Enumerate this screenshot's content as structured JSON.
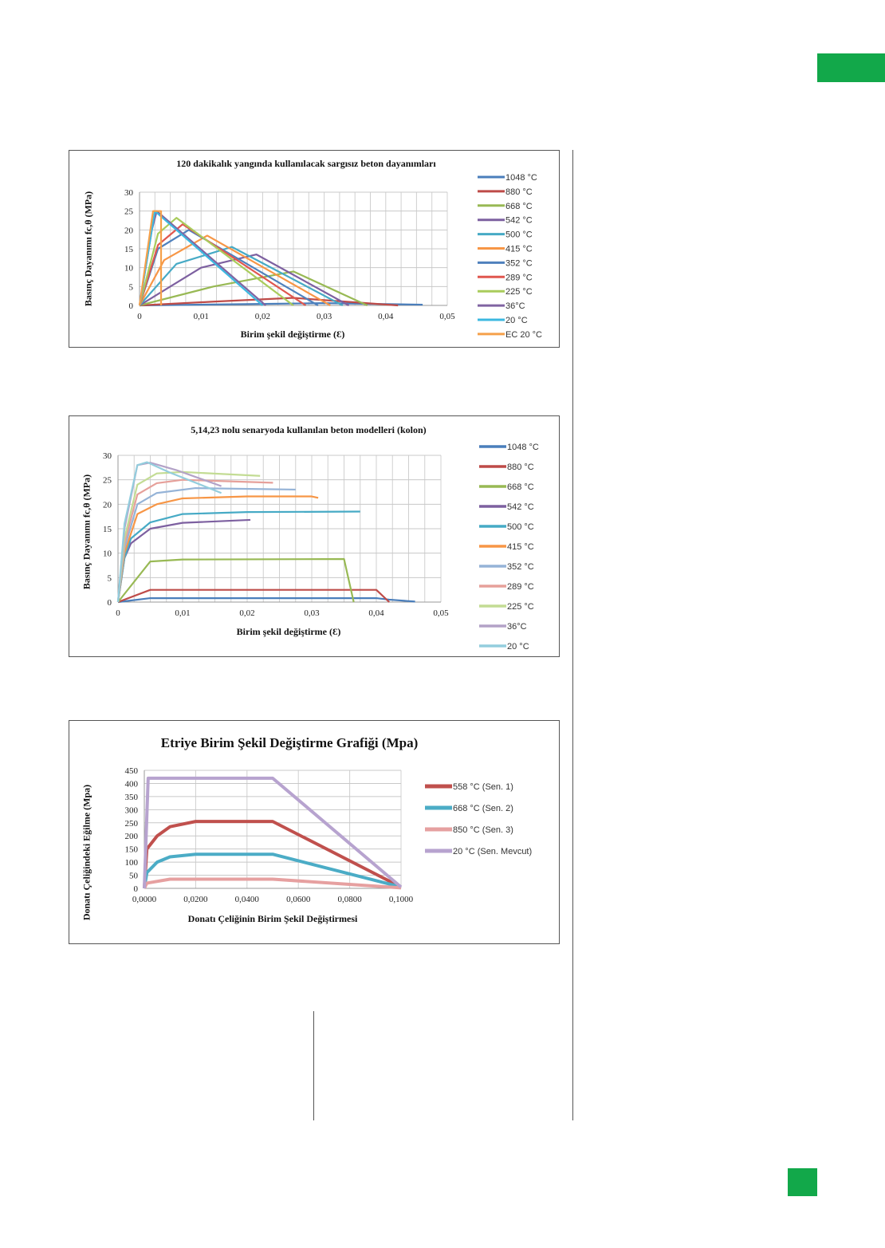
{
  "page": {
    "accent_color": "#12a84a"
  },
  "chart_data": [
    {
      "type": "line",
      "title": "120 dakikalık yangında kullanılacak sargısız beton dayanımları",
      "xlabel": "Birim şekil değiştirme (Ɛ)",
      "ylabel": "Basınç Dayanımı fc,θ (MPa)",
      "xlim": [
        0,
        0.05
      ],
      "ylim": [
        0,
        30
      ],
      "grid": true,
      "legend": "right",
      "xticks": [
        0,
        0.01,
        0.02,
        0.03,
        0.04,
        0.05
      ],
      "xtick_labels": [
        "0",
        "0,01",
        "0,02",
        "0,03",
        "0,04",
        "0,05"
      ],
      "yticks": [
        0,
        5,
        10,
        15,
        20,
        25,
        30
      ],
      "ytick_labels": [
        "0",
        "5",
        "10",
        "15",
        "20",
        "25",
        "30"
      ],
      "series": [
        {
          "name": "1048 °C",
          "color": "#4a7ebb",
          "points": [
            [
              0,
              0
            ],
            [
              0.02,
              0.4
            ],
            [
              0.03,
              0.6
            ],
            [
              0.046,
              0.2
            ]
          ]
        },
        {
          "name": "880 °C",
          "color": "#be4b48",
          "points": [
            [
              0,
              0
            ],
            [
              0.012,
              1
            ],
            [
              0.025,
              2
            ],
            [
              0.042,
              0
            ]
          ]
        },
        {
          "name": "668 °C",
          "color": "#98b954",
          "points": [
            [
              0,
              0
            ],
            [
              0.012,
              5
            ],
            [
              0.025,
              9
            ],
            [
              0.037,
              0
            ]
          ]
        },
        {
          "name": "542 °C",
          "color": "#7d60a0",
          "points": [
            [
              0,
              0
            ],
            [
              0.005,
              5
            ],
            [
              0.01,
              10
            ],
            [
              0.019,
              13.5
            ],
            [
              0.034,
              0
            ]
          ]
        },
        {
          "name": "500 °C",
          "color": "#46aac5",
          "points": [
            [
              0,
              0
            ],
            [
              0.006,
              11
            ],
            [
              0.015,
              15.5
            ],
            [
              0.033,
              0
            ]
          ]
        },
        {
          "name": "415 °C",
          "color": "#f79646",
          "points": [
            [
              0,
              0
            ],
            [
              0.004,
              12
            ],
            [
              0.011,
              18.5
            ],
            [
              0.031,
              0
            ]
          ]
        },
        {
          "name": "352 °C",
          "color": "#4f81bd",
          "points": [
            [
              0,
              0
            ],
            [
              0.003,
              15
            ],
            [
              0.008,
              20
            ],
            [
              0.029,
              0
            ]
          ]
        },
        {
          "name": "289 °C",
          "color": "#e0574f",
          "points": [
            [
              0,
              0
            ],
            [
              0.003,
              16
            ],
            [
              0.007,
              21.5
            ],
            [
              0.027,
              0
            ]
          ]
        },
        {
          "name": "225 °C",
          "color": "#a9cc5c",
          "points": [
            [
              0,
              0
            ],
            [
              0.003,
              19
            ],
            [
              0.006,
              23.2
            ],
            [
              0.025,
              0
            ]
          ]
        },
        {
          "name": "36°C",
          "color": "#8064a2",
          "points": [
            [
              0,
              0
            ],
            [
              0.002,
              20
            ],
            [
              0.0028,
              25
            ],
            [
              0.0205,
              0
            ]
          ]
        },
        {
          "name": "20 °C",
          "color": "#3cb8e0",
          "points": [
            [
              0,
              0
            ],
            [
              0.0025,
              25
            ],
            [
              0.02,
              0
            ]
          ]
        },
        {
          "name": "EC 20 °C",
          "color": "#f5a04a",
          "points": [
            [
              0,
              0
            ],
            [
              0.0022,
              25
            ],
            [
              0.0035,
              25
            ],
            [
              0.0035,
              0
            ]
          ]
        }
      ]
    },
    {
      "type": "line",
      "title": "5,14,23 nolu senaryoda kullanılan beton modelleri (kolon)",
      "xlabel": "Birim şekil değiştirme (Ɛ)",
      "ylabel": "Basınç Dayanımı fc,θ (MPa)",
      "xlim": [
        0,
        0.05
      ],
      "ylim": [
        0,
        30
      ],
      "grid": true,
      "legend": "right",
      "xticks": [
        0,
        0.01,
        0.02,
        0.03,
        0.04,
        0.05
      ],
      "xtick_labels": [
        "0",
        "0,01",
        "0,02",
        "0,03",
        "0,04",
        "0,05"
      ],
      "yticks": [
        0,
        5,
        10,
        15,
        20,
        25,
        30
      ],
      "ytick_labels": [
        "0",
        "5",
        "10",
        "15",
        "20",
        "25",
        "30"
      ],
      "series": [
        {
          "name": "1048 °C",
          "color": "#4a7ebb",
          "points": [
            [
              0,
              0
            ],
            [
              0.005,
              0.8
            ],
            [
              0.04,
              0.8
            ],
            [
              0.042,
              0.5
            ],
            [
              0.046,
              0.1
            ]
          ]
        },
        {
          "name": "880 °C",
          "color": "#be4b48",
          "points": [
            [
              0,
              0
            ],
            [
              0.005,
              2.5
            ],
            [
              0.04,
              2.5
            ],
            [
              0.042,
              0
            ]
          ]
        },
        {
          "name": "668 °C",
          "color": "#98b954",
          "points": [
            [
              0,
              0
            ],
            [
              0.005,
              8.3
            ],
            [
              0.01,
              8.7
            ],
            [
              0.035,
              8.8
            ],
            [
              0.0365,
              0
            ]
          ]
        },
        {
          "name": "542 °C",
          "color": "#7d60a0",
          "points": [
            [
              0,
              0
            ],
            [
              0.001,
              9
            ],
            [
              0.002,
              12
            ],
            [
              0.005,
              15
            ],
            [
              0.01,
              16.2
            ],
            [
              0.0205,
              16.8
            ]
          ]
        },
        {
          "name": "500 °C",
          "color": "#46aac5",
          "points": [
            [
              0,
              0
            ],
            [
              0.001,
              9
            ],
            [
              0.002,
              13
            ],
            [
              0.005,
              16.3
            ],
            [
              0.01,
              18
            ],
            [
              0.02,
              18.4
            ],
            [
              0.0375,
              18.5
            ]
          ]
        },
        {
          "name": "415 °C",
          "color": "#f79646",
          "points": [
            [
              0,
              0
            ],
            [
              0.001,
              10
            ],
            [
              0.003,
              18
            ],
            [
              0.006,
              20
            ],
            [
              0.01,
              21.2
            ],
            [
              0.02,
              21.6
            ],
            [
              0.03,
              21.6
            ],
            [
              0.031,
              21.3
            ]
          ]
        },
        {
          "name": "352 °C",
          "color": "#95b3d7",
          "points": [
            [
              0,
              0
            ],
            [
              0.001,
              11
            ],
            [
              0.003,
              20
            ],
            [
              0.006,
              22.3
            ],
            [
              0.012,
              23.3
            ],
            [
              0.0275,
              23
            ]
          ]
        },
        {
          "name": "289 °C",
          "color": "#e6a09a",
          "points": [
            [
              0,
              0
            ],
            [
              0.001,
              12
            ],
            [
              0.003,
              22
            ],
            [
              0.006,
              24.3
            ],
            [
              0.01,
              25
            ],
            [
              0.024,
              24.4
            ]
          ]
        },
        {
          "name": "225 °C",
          "color": "#c3dc94",
          "points": [
            [
              0,
              0
            ],
            [
              0.001,
              13
            ],
            [
              0.003,
              24
            ],
            [
              0.006,
              26.3
            ],
            [
              0.01,
              26.6
            ],
            [
              0.022,
              25.8
            ]
          ]
        },
        {
          "name": "36°C",
          "color": "#b3a2c7",
          "points": [
            [
              0,
              0
            ],
            [
              0.001,
              15
            ],
            [
              0.003,
              28
            ],
            [
              0.005,
              28.5
            ],
            [
              0.009,
              27
            ],
            [
              0.016,
              23.7
            ]
          ]
        },
        {
          "name": "20 °C",
          "color": "#93cddd",
          "points": [
            [
              0,
              0
            ],
            [
              0.001,
              16
            ],
            [
              0.003,
              28
            ],
            [
              0.0045,
              28.6
            ],
            [
              0.008,
              26.5
            ],
            [
              0.016,
              22.3
            ]
          ]
        }
      ]
    },
    {
      "type": "line",
      "title": "Etriye Birim Şekil Değiştirme Grafiği (Mpa)",
      "xlabel": "Donatı Çeliğinin Birim Şekil Değiştirmesi",
      "ylabel": "Donatı Çeliğindeki Eğilme (Mpa)",
      "xlim": [
        0,
        0.1
      ],
      "ylim": [
        0,
        450
      ],
      "grid": true,
      "legend": "right",
      "xticks": [
        0,
        0.02,
        0.04,
        0.06,
        0.08,
        0.1
      ],
      "xtick_labels": [
        "0,0000",
        "0,0200",
        "0,0400",
        "0,0600",
        "0,0800",
        "0,1000"
      ],
      "yticks": [
        0,
        50,
        100,
        150,
        200,
        250,
        300,
        350,
        400,
        450
      ],
      "ytick_labels": [
        "0",
        "50",
        "100",
        "150",
        "200",
        "250",
        "300",
        "350",
        "400",
        "450"
      ],
      "series": [
        {
          "name": "558 °C (Sen. 1)",
          "color": "#c0504d",
          "points": [
            [
              0,
              0
            ],
            [
              0.001,
              150
            ],
            [
              0.005,
              200
            ],
            [
              0.01,
              235
            ],
            [
              0.02,
              255
            ],
            [
              0.05,
              255
            ],
            [
              0.1,
              5
            ]
          ]
        },
        {
          "name": "668 °C (Sen. 2)",
          "color": "#4bacc6",
          "points": [
            [
              0,
              0
            ],
            [
              0.001,
              60
            ],
            [
              0.005,
              100
            ],
            [
              0.01,
              120
            ],
            [
              0.02,
              130
            ],
            [
              0.05,
              130
            ],
            [
              0.07,
              80
            ],
            [
              0.1,
              5
            ]
          ]
        },
        {
          "name": "850 °C (Sen. 3)",
          "color": "#e6a0a0",
          "points": [
            [
              0,
              0
            ],
            [
              0.001,
              20
            ],
            [
              0.01,
              35
            ],
            [
              0.05,
              35
            ],
            [
              0.1,
              2
            ]
          ]
        },
        {
          "name": "20 °C  (Sen. Mevcut)",
          "color": "#b7a3cf",
          "points": [
            [
              0,
              0
            ],
            [
              0.0015,
              420
            ],
            [
              0.05,
              420
            ],
            [
              0.1,
              5
            ]
          ]
        }
      ]
    }
  ]
}
